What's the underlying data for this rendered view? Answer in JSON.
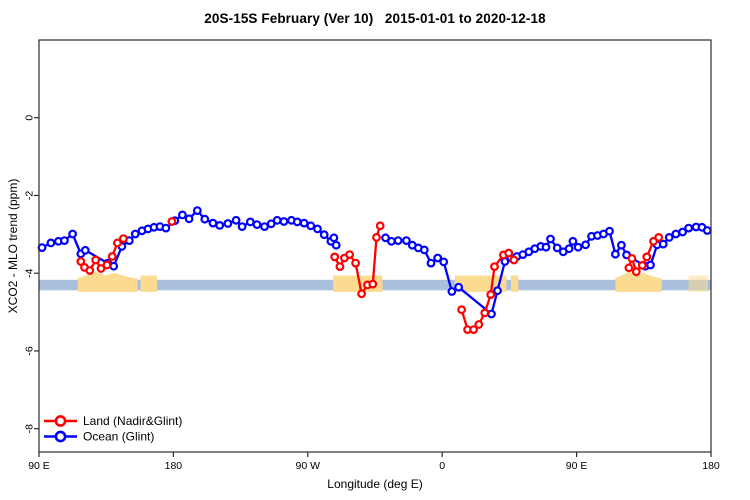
{
  "title": "20S-15S February (Ver 10)   2015-01-01 to 2020-12-18",
  "chart_data": {
    "type": "line",
    "title": "20S-15S February (Ver 10)   2015-01-01 to 2020-12-18",
    "xlabel": "Longitude (deg E)",
    "ylabel": "XCO2 - MLO trend (ppm)",
    "xlim": [
      90,
      540
    ],
    "ylim": [
      -8.6,
      2.0
    ],
    "grid": false,
    "x_ticks": [
      {
        "value": 90,
        "label": "90 E"
      },
      {
        "value": 180,
        "label": "180"
      },
      {
        "value": 270,
        "label": "90 W"
      },
      {
        "value": 360,
        "label": "0"
      },
      {
        "value": 450,
        "label": "90 E"
      },
      {
        "value": 540,
        "label": "180"
      }
    ],
    "y_ticks": [
      {
        "value": 0,
        "label": "0"
      },
      {
        "value": -2,
        "label": "-2"
      },
      {
        "value": -4,
        "label": "-4"
      },
      {
        "value": -6,
        "label": "-6"
      },
      {
        "value": -8,
        "label": "-8"
      }
    ],
    "reference_band": {
      "color": "#a9bfdc",
      "y_top": -4.17,
      "y_bottom": -4.44
    },
    "land_patches": {
      "color": "#fbdb8f",
      "y_top": -4.06,
      "y_bottom": -4.48,
      "regions": [
        {
          "x0": 116,
          "x1": 156,
          "shape": "hill"
        },
        {
          "x0": 158,
          "x1": 169,
          "shape": "flat"
        },
        {
          "x0": 287,
          "x1": 320,
          "shape": "flat"
        },
        {
          "x0": 368.5,
          "x1": 403,
          "shape": "flat"
        },
        {
          "x0": 406,
          "x1": 411,
          "shape": "flat"
        },
        {
          "x0": 476,
          "x1": 507,
          "shape": "hill"
        },
        {
          "x0": 525,
          "x1": 538,
          "shape": "speckle"
        }
      ]
    },
    "legend": {
      "position": "bottom-left",
      "entries": [
        {
          "label": "Land (Nadir&Glint)",
          "color": "#ff0000"
        },
        {
          "label": "Ocean (Glint)",
          "color": "#0000ff"
        }
      ]
    },
    "series": [
      {
        "name": "Ocean (Glint)",
        "color": "#0000ff",
        "marker": "open-circle",
        "segments": [
          [
            [
              92,
              -3.34
            ],
            [
              98,
              -3.22
            ],
            [
              103,
              -3.18
            ],
            [
              107,
              -3.16
            ],
            [
              112.5,
              -2.99
            ],
            [
              118,
              -3.5
            ],
            [
              121,
              -3.41
            ],
            [
              136,
              -3.74
            ],
            [
              140,
              -3.82
            ],
            [
              145.5,
              -3.31
            ],
            [
              150.5,
              -3.16
            ],
            [
              154.5,
              -2.99
            ],
            [
              159,
              -2.91
            ],
            [
              163,
              -2.86
            ],
            [
              167,
              -2.82
            ],
            [
              171,
              -2.8
            ],
            [
              175,
              -2.84
            ],
            [
              181,
              -2.65
            ],
            [
              186,
              -2.5
            ],
            [
              190.5,
              -2.6
            ],
            [
              196,
              -2.39
            ],
            [
              201,
              -2.61
            ],
            [
              206.5,
              -2.71
            ],
            [
              211,
              -2.77
            ],
            [
              216.5,
              -2.72
            ],
            [
              222,
              -2.64
            ],
            [
              226,
              -2.8
            ],
            [
              231.5,
              -2.68
            ],
            [
              236,
              -2.75
            ],
            [
              241,
              -2.8
            ],
            [
              245.5,
              -2.73
            ],
            [
              249.5,
              -2.64
            ],
            [
              254,
              -2.67
            ],
            [
              259,
              -2.64
            ],
            [
              263,
              -2.68
            ],
            [
              267.5,
              -2.71
            ],
            [
              272,
              -2.78
            ],
            [
              276.5,
              -2.86
            ],
            [
              281,
              -3.01
            ],
            [
              285.5,
              -3.18
            ],
            [
              287.5,
              -3.09
            ],
            [
              289,
              -3.28
            ]
          ],
          [
            [
              322,
              -3.09
            ],
            [
              326,
              -3.18
            ],
            [
              330.5,
              -3.16
            ],
            [
              336,
              -3.16
            ],
            [
              340,
              -3.28
            ],
            [
              344,
              -3.35
            ],
            [
              348,
              -3.4
            ],
            [
              352.5,
              -3.74
            ],
            [
              357,
              -3.61
            ],
            [
              361,
              -3.71
            ],
            [
              366.5,
              -4.47
            ],
            [
              371,
              -4.36
            ],
            [
              393,
              -5.05
            ],
            [
              397,
              -4.45
            ],
            [
              402,
              -3.7
            ],
            [
              406,
              -3.61
            ],
            [
              410,
              -3.57
            ],
            [
              414,
              -3.52
            ],
            [
              418,
              -3.45
            ],
            [
              422,
              -3.37
            ],
            [
              426,
              -3.31
            ],
            [
              429.5,
              -3.33
            ],
            [
              432.5,
              -3.12
            ],
            [
              437,
              -3.35
            ],
            [
              441,
              -3.45
            ],
            [
              445,
              -3.37
            ],
            [
              447.5,
              -3.18
            ],
            [
              451,
              -3.33
            ],
            [
              456,
              -3.27
            ],
            [
              460,
              -3.05
            ],
            [
              464,
              -3.03
            ],
            [
              468,
              -2.99
            ],
            [
              472,
              -2.92
            ],
            [
              476,
              -3.51
            ],
            [
              480,
              -3.28
            ],
            [
              483.5,
              -3.53
            ],
            [
              496,
              -3.82
            ],
            [
              499.5,
              -3.79
            ],
            [
              504,
              -3.27
            ],
            [
              508,
              -3.25
            ],
            [
              512,
              -3.08
            ],
            [
              516.5,
              -2.99
            ],
            [
              521,
              -2.94
            ],
            [
              525,
              -2.84
            ],
            [
              530,
              -2.81
            ],
            [
              534,
              -2.82
            ],
            [
              537.5,
              -2.9
            ]
          ]
        ]
      },
      {
        "name": "Land (Nadir&Glint)",
        "color": "#ff0000",
        "marker": "open-circle",
        "segments": [
          [
            [
              118,
              -3.7
            ],
            [
              120.5,
              -3.85
            ],
            [
              124,
              -3.93
            ],
            [
              128,
              -3.66
            ],
            [
              131.5,
              -3.88
            ],
            [
              135.5,
              -3.79
            ],
            [
              139,
              -3.57
            ],
            [
              142.5,
              -3.22
            ],
            [
              146.5,
              -3.11
            ]
          ],
          [
            [
              179,
              -2.67
            ]
          ],
          [
            [
              288,
              -3.58
            ],
            [
              291.5,
              -3.83
            ],
            [
              294.5,
              -3.61
            ],
            [
              298,
              -3.52
            ],
            [
              302,
              -3.74
            ],
            [
              306,
              -4.53
            ],
            [
              310,
              -4.3
            ],
            [
              313.5,
              -4.28
            ],
            [
              316,
              -3.08
            ],
            [
              318.5,
              -2.78
            ]
          ],
          [
            [
              373,
              -4.94
            ],
            [
              377,
              -5.45
            ],
            [
              381,
              -5.45
            ],
            [
              384.5,
              -5.32
            ],
            [
              388.5,
              -5.02
            ],
            [
              392.5,
              -4.55
            ],
            [
              395,
              -3.83
            ],
            [
              401,
              -3.53
            ],
            [
              404.5,
              -3.48
            ],
            [
              408,
              -3.66
            ]
          ],
          [
            [
              485,
              -3.86
            ],
            [
              487,
              -3.62
            ],
            [
              490,
              -3.96
            ],
            [
              494,
              -3.8
            ],
            [
              497,
              -3.58
            ],
            [
              501.5,
              -3.18
            ],
            [
              505,
              -3.08
            ]
          ]
        ]
      }
    ]
  },
  "colors": {
    "land_series": "#ff0000",
    "ocean_series": "#0000ff",
    "reference_band": "#a9bfdc",
    "land_patch": "#fbdb8f",
    "axis": "#2b2b2b",
    "background": "#ffffff"
  }
}
